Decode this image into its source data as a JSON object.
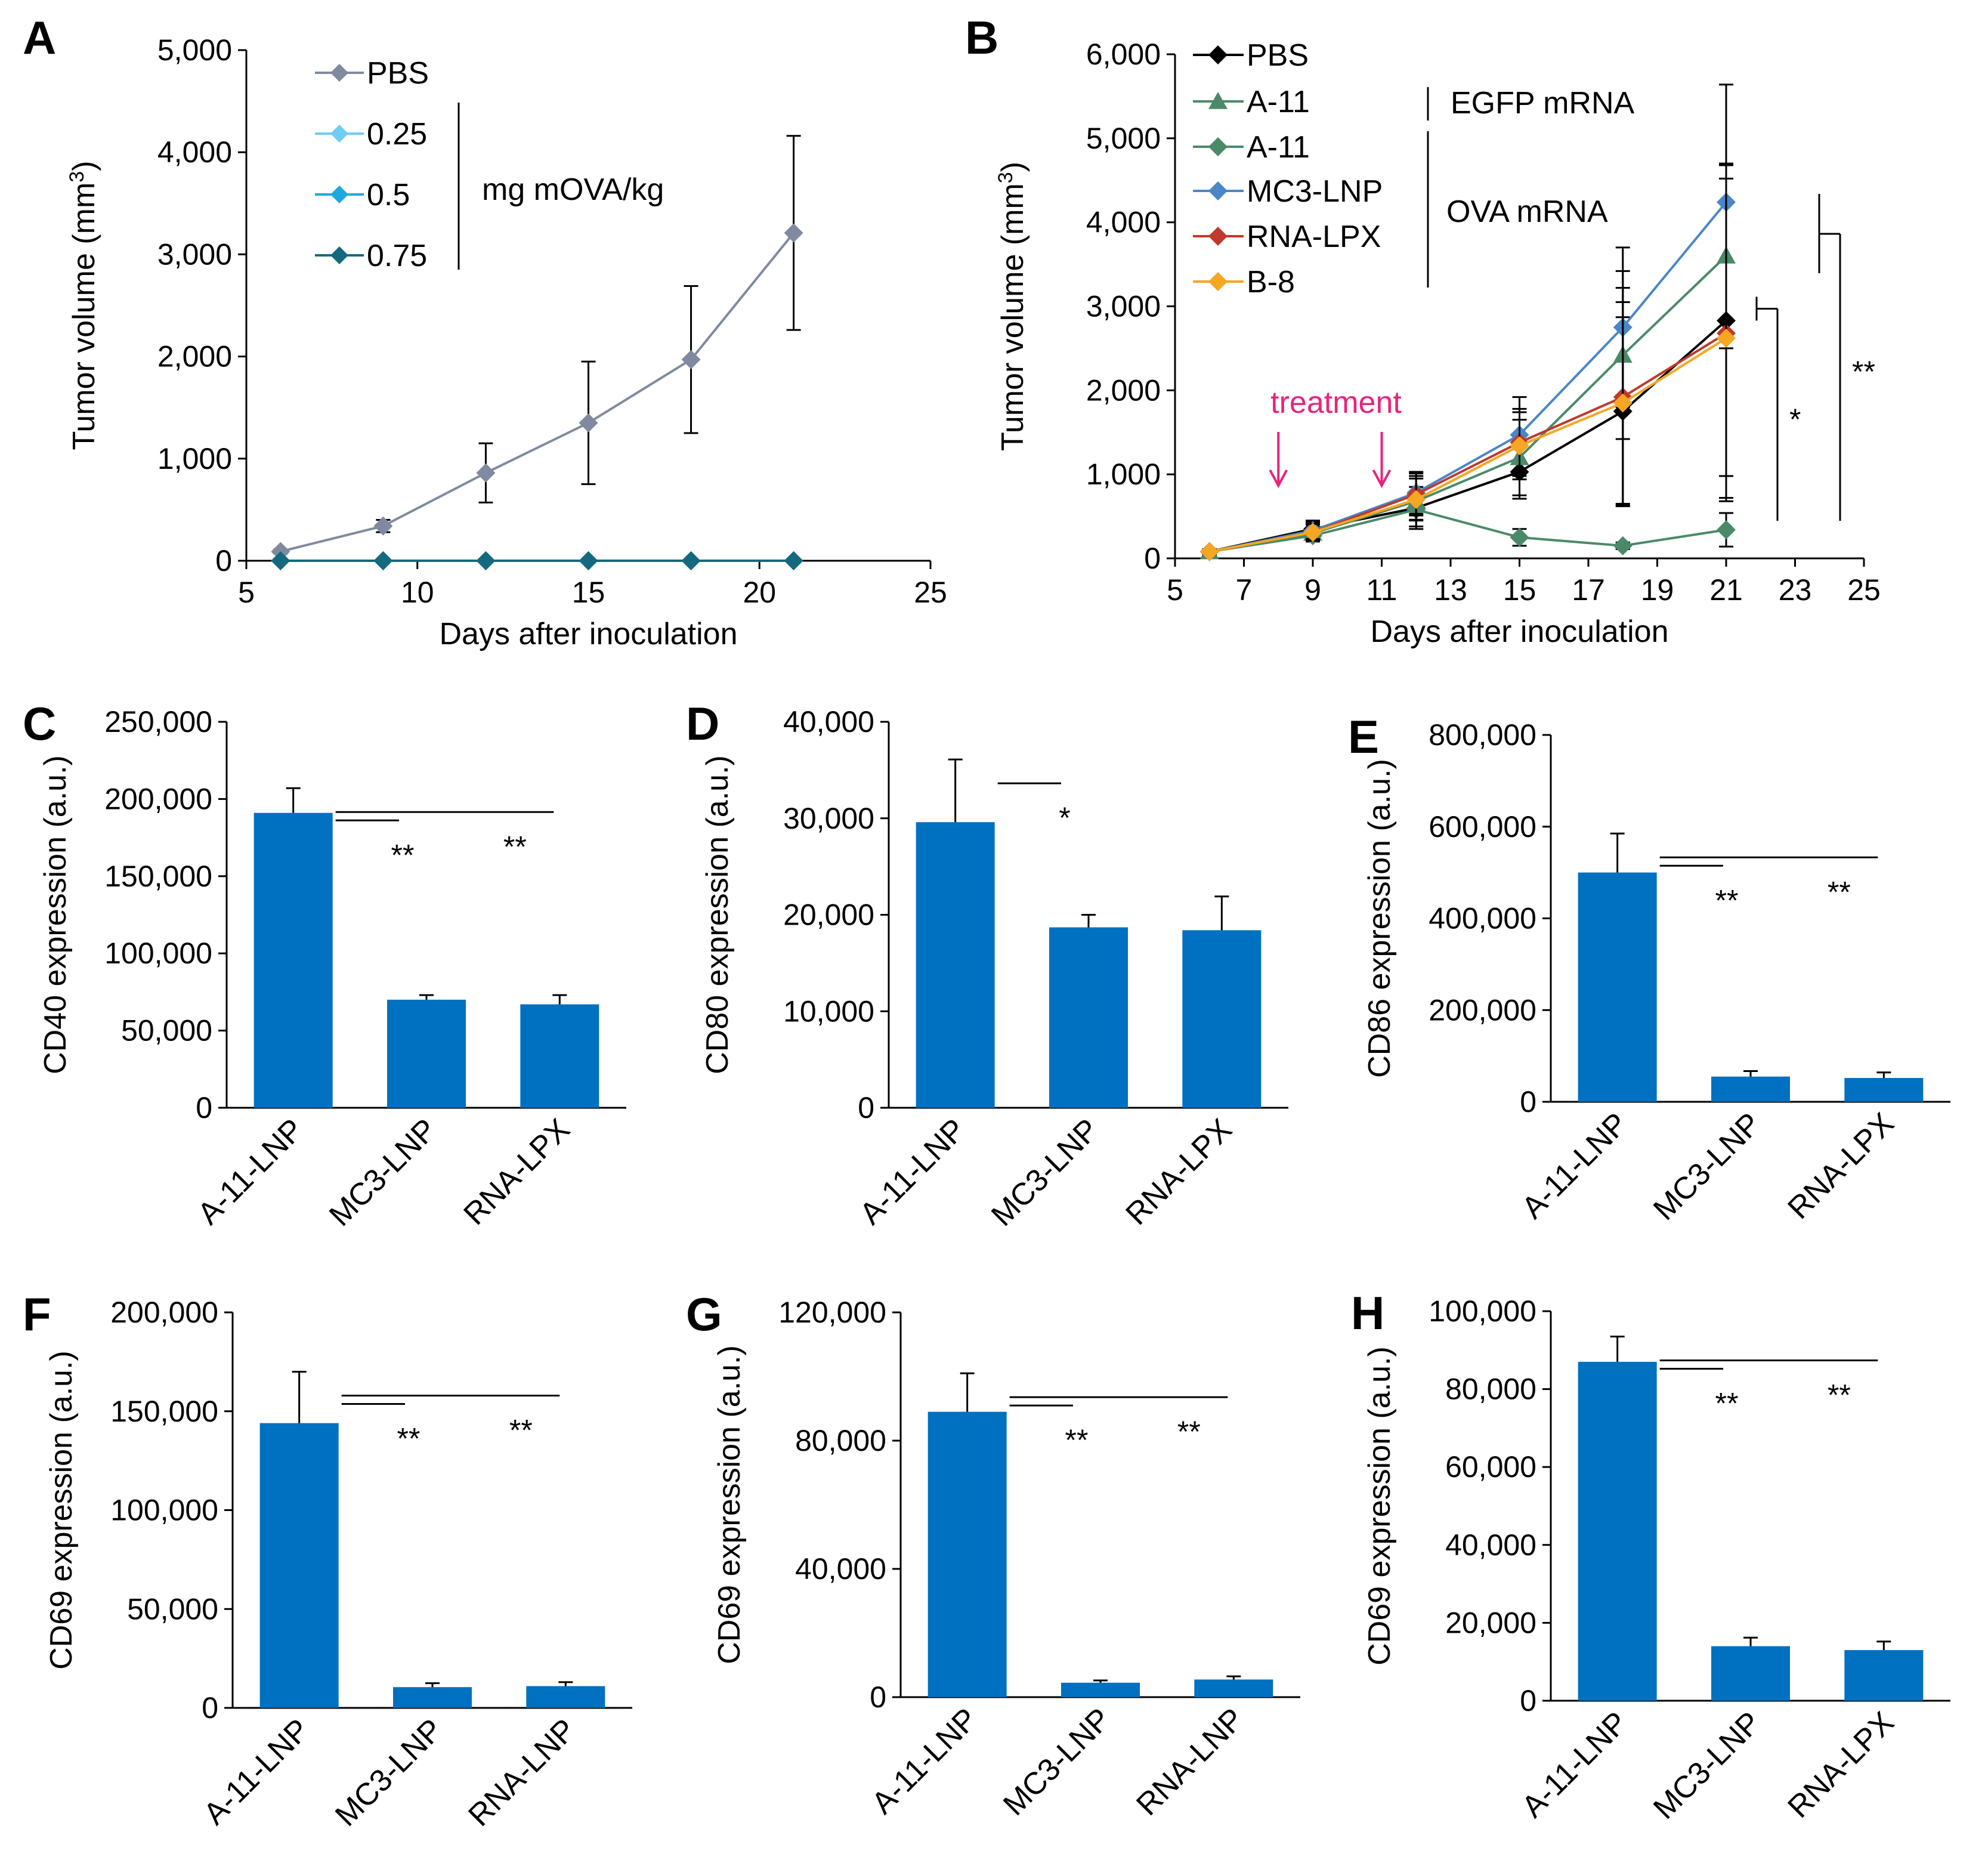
{
  "figure": {
    "background": "#ffffff"
  },
  "chart_data": [
    {
      "id": "A",
      "panel_letter": "A",
      "type": "line",
      "xlabel": "Days after inoculation",
      "ylabel_text": "Tumor volume (mm",
      "ylabel_sup": "3",
      "ylabel_close": ")",
      "xlim": [
        5,
        25
      ],
      "ylim": [
        0,
        5000
      ],
      "x_ticks": [
        5,
        10,
        15,
        20,
        25
      ],
      "x_tick_labels": [
        "5",
        "10",
        "15",
        "20",
        "25"
      ],
      "y_ticks": [
        0,
        1000,
        2000,
        3000,
        4000,
        5000
      ],
      "y_tick_labels": [
        "0",
        "1,000",
        "2,000",
        "3,000",
        "4,000",
        "5,000"
      ],
      "series": [
        {
          "name": "PBS",
          "color": "#7f8aa0",
          "marker": "diamond",
          "x": [
            6,
            9,
            12,
            15,
            18,
            21
          ],
          "values": [
            90,
            340,
            860,
            1350,
            1970,
            3210
          ],
          "err": [
            20,
            60,
            290,
            600,
            720,
            950
          ]
        },
        {
          "name": "0.25",
          "color": "#6fcdf2",
          "marker": "diamond",
          "x": [
            6,
            9,
            12,
            15,
            18,
            21
          ],
          "values": [
            0,
            0,
            0,
            0,
            0,
            0
          ],
          "err": [
            0,
            0,
            0,
            0,
            0,
            0
          ]
        },
        {
          "name": "0.5",
          "color": "#1fa8df",
          "marker": "diamond",
          "x": [
            6,
            9,
            12,
            15,
            18,
            21
          ],
          "values": [
            0,
            0,
            0,
            0,
            0,
            0
          ],
          "err": [
            0,
            0,
            0,
            0,
            0,
            0
          ]
        },
        {
          "name": "0.75",
          "color": "#15697e",
          "marker": "diamond",
          "x": [
            6,
            9,
            12,
            15,
            18,
            21
          ],
          "values": [
            0,
            0,
            0,
            0,
            0,
            0
          ],
          "err": [
            0,
            0,
            0,
            0,
            0,
            0
          ]
        }
      ],
      "legend_group_label": "mg mOVA/kg"
    },
    {
      "id": "B",
      "panel_letter": "B",
      "type": "line",
      "xlabel": "Days after inoculation",
      "ylabel_text": "Tumor volume (mm",
      "ylabel_sup": "3",
      "ylabel_close": ")",
      "xlim": [
        5,
        25
      ],
      "ylim": [
        0,
        6000
      ],
      "x_ticks": [
        5,
        7,
        9,
        11,
        13,
        15,
        17,
        19,
        21,
        23,
        25
      ],
      "x_tick_labels": [
        "5",
        "7",
        "9",
        "11",
        "13",
        "15",
        "17",
        "19",
        "21",
        "23",
        "25"
      ],
      "y_ticks": [
        0,
        1000,
        2000,
        3000,
        4000,
        5000,
        6000
      ],
      "y_tick_labels": [
        "0",
        "1,000",
        "2,000",
        "3,000",
        "4,000",
        "5,000",
        "6,000"
      ],
      "series": [
        {
          "name": "PBS",
          "color": "#000000",
          "marker": "diamond",
          "x": [
            6,
            9,
            12,
            15,
            18,
            21
          ],
          "values": [
            80,
            350,
            600,
            1030,
            1750,
            2830
          ],
          "err": [
            30,
            100,
            250,
            320,
            1120,
            1850
          ]
        },
        {
          "name": "A-11",
          "color": "#4a8a68",
          "marker": "triangle",
          "x": [
            6,
            9,
            12,
            15,
            18,
            21
          ],
          "values": [
            80,
            300,
            680,
            1200,
            2420,
            3600
          ],
          "err": [
            30,
            100,
            300,
            450,
            1000,
            1100
          ]
        },
        {
          "name": "A-11",
          "color": "#4a8a68",
          "marker": "diamond",
          "x": [
            6,
            9,
            12,
            15,
            18,
            21
          ],
          "values": [
            80,
            270,
            580,
            250,
            150,
            340
          ],
          "err": [
            20,
            60,
            120,
            100,
            40,
            200
          ]
        },
        {
          "name": "MC3-LNP",
          "color": "#4a86c8",
          "marker": "diamond",
          "x": [
            6,
            9,
            12,
            15,
            18,
            21
          ],
          "values": [
            80,
            330,
            780,
            1470,
            2750,
            4240
          ],
          "err": [
            30,
            100,
            250,
            450,
            950,
            1400
          ]
        },
        {
          "name": "RNA-LPX",
          "color": "#c0392b",
          "marker": "diamond",
          "x": [
            6,
            9,
            12,
            15,
            18,
            21
          ],
          "values": [
            80,
            310,
            760,
            1380,
            1920,
            2680
          ],
          "err": [
            30,
            100,
            250,
            400,
            1300,
            2000
          ]
        },
        {
          "name": "B-8",
          "color": "#f5a623",
          "marker": "diamond",
          "x": [
            6,
            9,
            12,
            15,
            18,
            21
          ],
          "values": [
            80,
            310,
            700,
            1340,
            1850,
            2620
          ],
          "err": [
            30,
            100,
            250,
            400,
            1200,
            1900
          ]
        }
      ],
      "legend_group_labels": [
        "EGFP mRNA",
        "OVA mRNA"
      ],
      "annotation_text": "treatment",
      "annotation_color": "#e8247a",
      "treatment_days": [
        8,
        11
      ],
      "significance": [
        {
          "label": "*",
          "from_value": 2830,
          "to_value": 340,
          "from_series": "PBS",
          "to_series": "A-11"
        },
        {
          "label": "**",
          "from_value": 4240,
          "to_value": 340,
          "from_series": "MC3-LNP",
          "to_series": "A-11"
        }
      ]
    },
    {
      "id": "C",
      "panel_letter": "C",
      "type": "bar",
      "ylabel": "CD40 expression (a.u.)",
      "categories": [
        "A-11-LNP",
        "MC3-LNP",
        "RNA-LPX"
      ],
      "values": [
        191000,
        70000,
        67000
      ],
      "err": [
        16000,
        3000,
        6000
      ],
      "ylim": [
        0,
        250000
      ],
      "y_ticks": [
        0,
        50000,
        100000,
        150000,
        200000,
        250000
      ],
      "y_tick_labels": [
        "0",
        "50,000",
        "100,000",
        "150,000",
        "200,000",
        "250,000"
      ],
      "bar_color": "#0070c0",
      "significance": [
        {
          "label": "**",
          "from": 0,
          "to": 1
        },
        {
          "label": "**",
          "from": 0,
          "to": 2
        }
      ]
    },
    {
      "id": "D",
      "panel_letter": "D",
      "type": "bar",
      "ylabel": "CD80 expression (a.u.)",
      "categories": [
        "A-11-LNP",
        "MC3-LNP",
        "RNA-LPX"
      ],
      "values": [
        29600,
        18700,
        18400
      ],
      "err": [
        6500,
        1300,
        3500
      ],
      "ylim": [
        0,
        40000
      ],
      "y_ticks": [
        0,
        10000,
        20000,
        30000,
        40000
      ],
      "y_tick_labels": [
        "0",
        "10,000",
        "20,000",
        "30,000",
        "40,000"
      ],
      "bar_color": "#0070c0",
      "significance": [
        {
          "label": "*",
          "from": 0,
          "to": 1
        }
      ]
    },
    {
      "id": "E",
      "panel_letter": "E",
      "type": "bar",
      "ylabel": "CD86 expression (a.u.)",
      "categories": [
        "A-11-LNP",
        "MC3-LNP",
        "RNA-LPX"
      ],
      "values": [
        500000,
        55000,
        52000
      ],
      "err": [
        85000,
        12000,
        12000
      ],
      "ylim": [
        0,
        800000
      ],
      "y_ticks": [
        0,
        200000,
        400000,
        600000,
        800000
      ],
      "y_tick_labels": [
        "0",
        "200,000",
        "400,000",
        "600,000",
        "800,000"
      ],
      "bar_color": "#0070c0",
      "significance": [
        {
          "label": "**",
          "from": 0,
          "to": 1
        },
        {
          "label": "**",
          "from": 0,
          "to": 2
        }
      ]
    },
    {
      "id": "F",
      "panel_letter": "F",
      "type": "bar",
      "ylabel": "CD69 expression (a.u.)",
      "categories": [
        "A-11-LNP",
        "MC3-LNP",
        "RNA-LNP"
      ],
      "values": [
        144000,
        10500,
        11000
      ],
      "err": [
        26000,
        2000,
        2000
      ],
      "ylim": [
        0,
        200000
      ],
      "y_ticks": [
        0,
        50000,
        100000,
        150000,
        200000
      ],
      "y_tick_labels": [
        "0",
        "50,000",
        "100,000",
        "150,000",
        "200,000"
      ],
      "bar_color": "#0070c0",
      "significance": [
        {
          "label": "**",
          "from": 0,
          "to": 1
        },
        {
          "label": "**",
          "from": 0,
          "to": 2
        }
      ]
    },
    {
      "id": "G",
      "panel_letter": "G",
      "type": "bar",
      "ylabel": "CD69 expression (a.u.)",
      "categories": [
        "A-11-LNP",
        "MC3-LNP",
        "RNA-LNP"
      ],
      "values": [
        89000,
        4500,
        5500
      ],
      "err": [
        12000,
        700,
        1000
      ],
      "ylim": [
        0,
        120000
      ],
      "y_ticks": [
        0,
        40000,
        80000,
        120000
      ],
      "y_tick_labels": [
        "0",
        "40,000",
        "80,000",
        "120,000"
      ],
      "bar_color": "#0070c0",
      "significance": [
        {
          "label": "**",
          "from": 0,
          "to": 1
        },
        {
          "label": "**",
          "from": 0,
          "to": 2
        }
      ]
    },
    {
      "id": "H",
      "panel_letter": "H",
      "type": "bar",
      "ylabel": "CD69 expression (a.u.)",
      "categories": [
        "A-11-LNP",
        "MC3-LNP",
        "RNA-LPX"
      ],
      "values": [
        87000,
        14000,
        13000
      ],
      "err": [
        6500,
        2200,
        2200
      ],
      "ylim": [
        0,
        100000
      ],
      "y_ticks": [
        0,
        20000,
        40000,
        60000,
        80000,
        100000
      ],
      "y_tick_labels": [
        "0",
        "20,000",
        "40,000",
        "60,000",
        "80,000",
        "100,000"
      ],
      "bar_color": "#0070c0",
      "significance": [
        {
          "label": "**",
          "from": 0,
          "to": 1
        },
        {
          "label": "**",
          "from": 0,
          "to": 2
        }
      ]
    }
  ]
}
